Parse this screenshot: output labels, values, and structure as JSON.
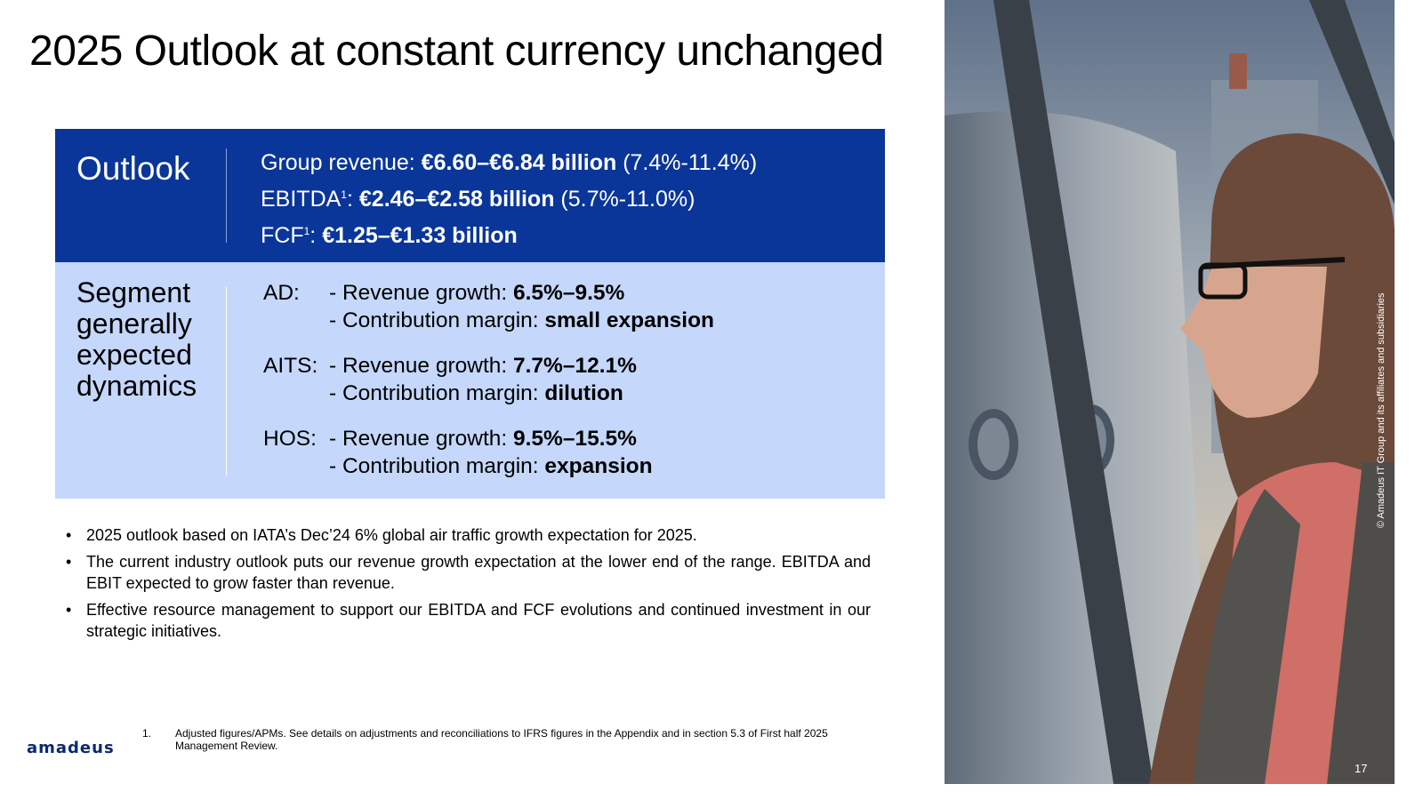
{
  "title": "2025 Outlook at constant currency unchanged",
  "outlook": {
    "heading": "Outlook",
    "group_revenue": {
      "label": "Group revenue: ",
      "value": "€6.60–€6.84 billion",
      "range": " (7.4%-11.4%)"
    },
    "ebitda": {
      "label": "EBITDA",
      "sup": "1",
      "colon": ": ",
      "value": "€2.46–€2.58 billion",
      "range": " (5.7%-11.0%)"
    },
    "fcf": {
      "label": "FCF",
      "sup": "1",
      "colon": ": ",
      "value": "€1.25–€1.33 billion"
    }
  },
  "segments": {
    "heading": "Segment generally expected dynamics",
    "items": [
      {
        "code": "AD:",
        "growth_label": "- Revenue growth: ",
        "growth": "6.5%–9.5%",
        "margin_label": "- Contribution margin: ",
        "margin": "small expansion"
      },
      {
        "code": "AITS:",
        "growth_label": "- Revenue growth: ",
        "growth": "7.7%–12.1%",
        "margin_label": "- Contribution margin: ",
        "margin": "dilution"
      },
      {
        "code": "HOS:",
        "growth_label": "- Revenue growth: ",
        "growth": "9.5%–15.5%",
        "margin_label": "- Contribution margin: ",
        "margin": "expansion"
      }
    ]
  },
  "bullets": [
    "2025 outlook based on IATA’s Dec’24 6% global air traffic growth expectation for 2025.",
    "The current industry outlook puts our revenue growth expectation at the lower end of the range. EBITDA and EBIT expected to grow faster than revenue.",
    "Effective resource management to support our EBITDA and FCF evolutions and continued investment in our strategic initiatives."
  ],
  "footnote": {
    "number": "1.",
    "text": "Adjusted figures/APMs. See details on adjustments and reconciliations to IFRS figures in the Appendix and in section 5.3 of First half 2025 Management Review."
  },
  "logo_text": "amadeus",
  "photo_credit": "© Amadeus IT Group and its affiliates and subsidiaries",
  "page_number": "17",
  "colors": {
    "outlook_bg": "#0a3699",
    "segment_bg": "#c5d7fa",
    "logo": "#0a2a6b"
  }
}
